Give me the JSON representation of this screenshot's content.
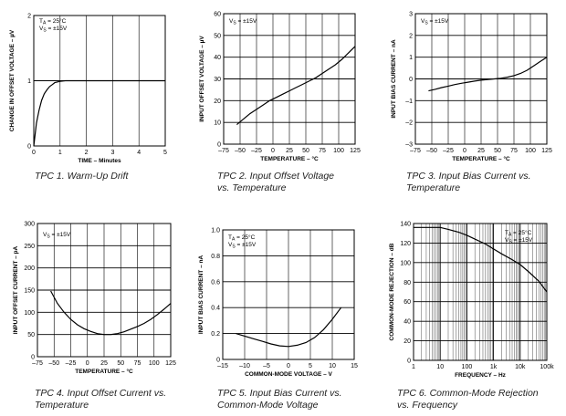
{
  "chart_data": [
    {
      "type": "line",
      "caption": [
        "TPC 1. Warm-Up Drift"
      ],
      "xlabel": "TIME – Minutes",
      "ylabel": "CHANGE IN OFFSET VOLTAGE – µV",
      "xlim": [
        0,
        5
      ],
      "ylim": [
        0,
        2
      ],
      "xticks": [
        "0",
        "1",
        "2",
        "3",
        "4",
        "5"
      ],
      "yticks": [
        "0",
        "1",
        "2"
      ],
      "annotations": [
        {
          "main": "T",
          "sub": "A",
          "rest": " = 25°C"
        },
        {
          "main": "V",
          "sub": "S",
          "rest": " = ±15V"
        }
      ],
      "series": [
        {
          "name": "warm-up drift",
          "x": [
            0,
            0.1,
            0.2,
            0.3,
            0.4,
            0.5,
            0.6,
            0.7,
            0.8,
            1.0,
            1.2,
            1.3,
            1.5,
            2,
            3,
            4,
            5
          ],
          "y": [
            0,
            0.35,
            0.55,
            0.7,
            0.8,
            0.86,
            0.91,
            0.94,
            0.97,
            0.99,
            1.0,
            1.0,
            1.0,
            1.0,
            1.0,
            1.0,
            1.0
          ]
        }
      ]
    },
    {
      "type": "line",
      "caption": [
        "TPC 2. Input Offset Voltage",
        "vs. Temperature"
      ],
      "xlabel": "TEMPERATURE – °C",
      "ylabel": "INPUT OFFSET VOLTAGE – µV",
      "xlim": [
        -75,
        125
      ],
      "ylim": [
        0,
        60
      ],
      "xticks": [
        "–75",
        "–50",
        "–25",
        "0",
        "25",
        "50",
        "75",
        "100",
        "125"
      ],
      "yticks": [
        "0",
        "10",
        "20",
        "30",
        "40",
        "50",
        "60"
      ],
      "annotations": [
        {
          "main": "V",
          "sub": "S",
          "rest": " = ±15V"
        }
      ],
      "series": [
        {
          "name": "offset voltage",
          "x": [
            -55,
            -45,
            -35,
            -25,
            -15,
            -5,
            5,
            15,
            25,
            35,
            45,
            55,
            65,
            75,
            85,
            95,
            105,
            115,
            125
          ],
          "y": [
            9,
            11.5,
            14,
            16,
            18,
            20,
            21.5,
            23,
            24.5,
            26,
            27.5,
            29,
            30.5,
            32.5,
            34.5,
            36.5,
            39,
            42,
            45
          ]
        }
      ]
    },
    {
      "type": "line",
      "caption": [
        "TPC 3. Input Bias Current vs.",
        "Temperature"
      ],
      "xlabel": "TEMPERATURE – °C",
      "ylabel": "INPUT BIAS CURRENT – nA",
      "xlim": [
        -75,
        125
      ],
      "ylim": [
        -3,
        3
      ],
      "xticks": [
        "–75",
        "–50",
        "–25",
        "0",
        "25",
        "50",
        "75",
        "100",
        "125"
      ],
      "yticks": [
        "–3",
        "–2",
        "–1",
        "0",
        "1",
        "2",
        "3"
      ],
      "annotations": [
        {
          "main": "V",
          "sub": "S",
          "rest": " = ±15V"
        }
      ],
      "series": [
        {
          "name": "bias current",
          "x": [
            -55,
            -45,
            -35,
            -25,
            -15,
            -5,
            5,
            15,
            25,
            35,
            45,
            55,
            65,
            75,
            85,
            95,
            105,
            115,
            125
          ],
          "y": [
            -0.55,
            -0.48,
            -0.4,
            -0.33,
            -0.26,
            -0.2,
            -0.15,
            -0.1,
            -0.06,
            -0.03,
            0.0,
            0.03,
            0.08,
            0.15,
            0.25,
            0.4,
            0.6,
            0.8,
            1.0
          ]
        }
      ]
    },
    {
      "type": "line",
      "caption": [
        "TPC 4. Input Offset Current vs.",
        "Temperature"
      ],
      "xlabel": "TEMPERATURE – °C",
      "ylabel": "INPUT OFFSET CURRENT – pA",
      "xlim": [
        -75,
        125
      ],
      "ylim": [
        0,
        300
      ],
      "xticks": [
        "–75",
        "–50",
        "–25",
        "0",
        "25",
        "50",
        "75",
        "100",
        "125"
      ],
      "yticks": [
        "0",
        "50",
        "100",
        "150",
        "200",
        "250",
        "300"
      ],
      "annotations": [
        {
          "main": "V",
          "sub": "S",
          "rest": " = ±15V"
        }
      ],
      "series": [
        {
          "name": "offset current",
          "x": [
            -55,
            -45,
            -35,
            -25,
            -15,
            -5,
            5,
            15,
            25,
            35,
            45,
            55,
            65,
            75,
            85,
            95,
            105,
            115,
            125
          ],
          "y": [
            148,
            120,
            100,
            84,
            72,
            63,
            57,
            52,
            50,
            50,
            52,
            56,
            62,
            68,
            75,
            84,
            95,
            107,
            120
          ]
        }
      ]
    },
    {
      "type": "line",
      "caption": [
        "TPC 5. Input Bias Current vs.",
        "Common-Mode Voltage"
      ],
      "xlabel": "COMMON-MODE VOLTAGE – V",
      "ylabel": "INPUT BIAS CURRENT – nA",
      "xlim": [
        -15,
        15
      ],
      "ylim": [
        0,
        1.0
      ],
      "xticks": [
        "–15",
        "–10",
        "–5",
        "0",
        "5",
        "10",
        "15"
      ],
      "yticks": [
        "0",
        "0.2",
        "0.4",
        "0.6",
        "0.8",
        "1.0"
      ],
      "annotations": [
        {
          "main": "T",
          "sub": "A",
          "rest": " = 25°C"
        },
        {
          "main": "V",
          "sub": "S",
          "rest": " = ±15V"
        }
      ],
      "series": [
        {
          "name": "bias current vs CMV",
          "x": [
            -12,
            -10,
            -8,
            -6,
            -4,
            -2,
            0,
            2,
            4,
            6,
            8,
            10,
            12
          ],
          "y": [
            0.2,
            0.18,
            0.16,
            0.14,
            0.12,
            0.105,
            0.1,
            0.11,
            0.13,
            0.17,
            0.23,
            0.31,
            0.4
          ]
        }
      ]
    },
    {
      "type": "line",
      "caption": [
        "TPC 6. Common-Mode Rejection",
        "vs. Frequency"
      ],
      "xlabel": "FREQUENCY – Hz",
      "ylabel": "COMMON-MODE REJECTION – dB",
      "xscale": "log",
      "xlim": [
        1,
        100000
      ],
      "ylim": [
        0,
        140
      ],
      "xticks": [
        "1",
        "10",
        "100",
        "1k",
        "10k",
        "100k"
      ],
      "yticks": [
        "0",
        "20",
        "40",
        "60",
        "80",
        "100",
        "120",
        "140"
      ],
      "annotations": [
        {
          "main": "T",
          "sub": "A",
          "rest": " = 25°C"
        },
        {
          "main": "V",
          "sub": "S",
          "rest": " = ±15V"
        }
      ],
      "series": [
        {
          "name": "CMR",
          "x": [
            1,
            3,
            10,
            20,
            50,
            100,
            200,
            500,
            1000,
            2000,
            5000,
            10000,
            20000,
            50000,
            100000
          ],
          "y": [
            136,
            136,
            136,
            134,
            131,
            128,
            124,
            119,
            114,
            109,
            103,
            98,
            91,
            81,
            70
          ]
        }
      ]
    }
  ]
}
